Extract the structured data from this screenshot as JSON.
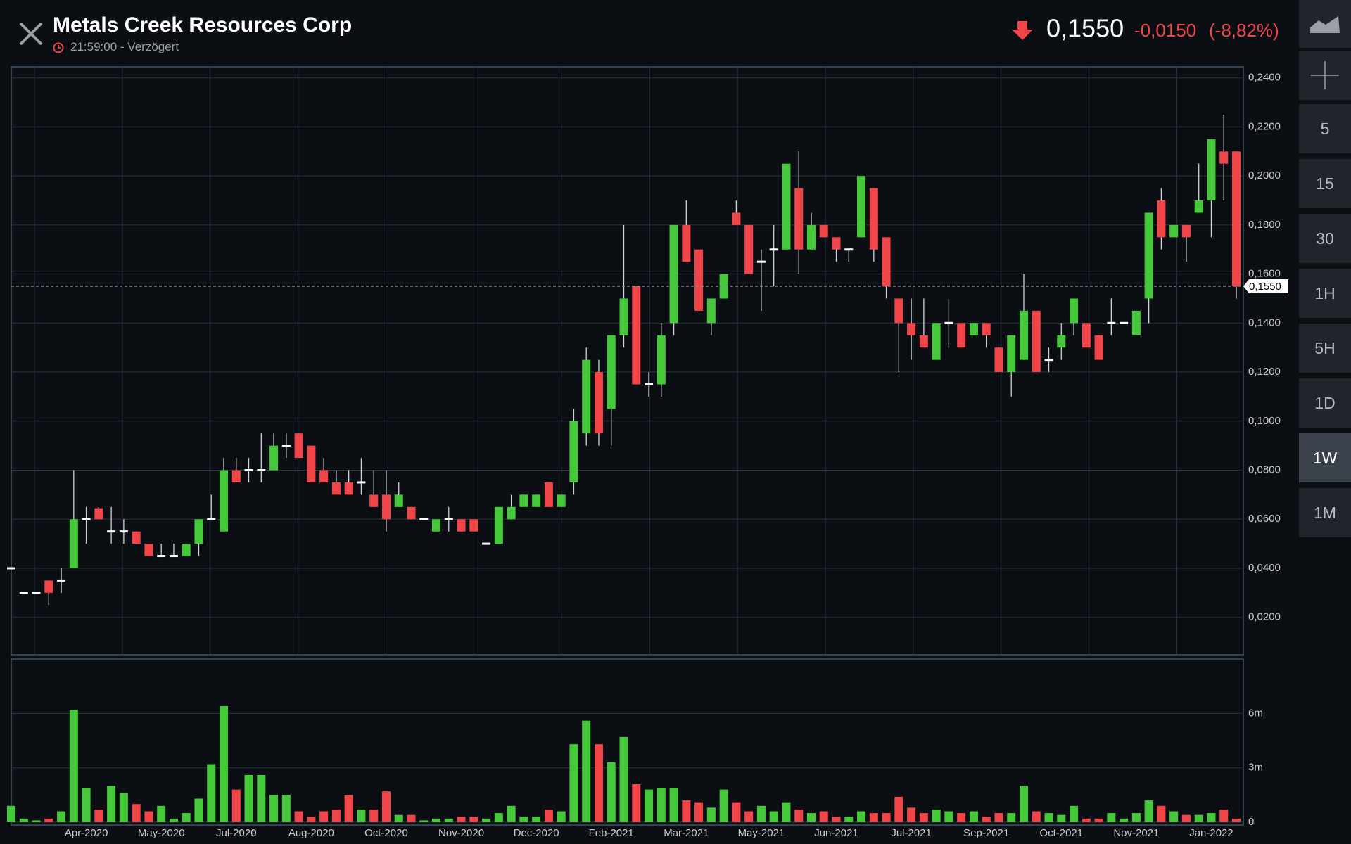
{
  "header": {
    "title": "Metals Creek Resources Corp",
    "time": "21:59:00",
    "delay_label": "- Verzögert",
    "price": "0,1550",
    "change": "-0,0150",
    "change_pct": "(-8,82%)"
  },
  "toolbar": {
    "timeframes": [
      "5",
      "15",
      "30",
      "1H",
      "5H",
      "1D",
      "1W",
      "1M"
    ],
    "active_timeframe": "1W"
  },
  "chart_data": {
    "type": "candlestick",
    "up_color": "#45c93b",
    "down_color": "#f0464a",
    "grid": true,
    "xlim": [
      0,
      98
    ],
    "xticks": [
      {
        "value": 6,
        "label": "Apr-2020"
      },
      {
        "value": 12,
        "label": "May-2020"
      },
      {
        "value": 18,
        "label": "Jul-2020"
      },
      {
        "value": 24,
        "label": "Aug-2020"
      },
      {
        "value": 30,
        "label": "Oct-2020"
      },
      {
        "value": 36,
        "label": "Nov-2020"
      },
      {
        "value": 42,
        "label": "Dec-2020"
      },
      {
        "value": 48,
        "label": "Feb-2021"
      },
      {
        "value": 54,
        "label": "Mar-2021"
      },
      {
        "value": 60,
        "label": "May-2021"
      },
      {
        "value": 66,
        "label": "Jun-2021"
      },
      {
        "value": 72,
        "label": "Jul-2021"
      },
      {
        "value": 78,
        "label": "Sep-2021"
      },
      {
        "value": 84,
        "label": "Oct-2021"
      },
      {
        "value": 90,
        "label": "Nov-2021"
      },
      {
        "value": 96,
        "label": "Jan-2022"
      }
    ],
    "ylim": [
      0.005,
      0.2445
    ],
    "yticks": [
      {
        "value": 0.02,
        "label": "0,0200"
      },
      {
        "value": 0.04,
        "label": "0,0400"
      },
      {
        "value": 0.06,
        "label": "0,0600"
      },
      {
        "value": 0.08,
        "label": "0,0800"
      },
      {
        "value": 0.1,
        "label": "0,1000"
      },
      {
        "value": 0.12,
        "label": "0,1200"
      },
      {
        "value": 0.14,
        "label": "0,1400"
      },
      {
        "value": 0.16,
        "label": "0,1600"
      },
      {
        "value": 0.18,
        "label": "0,1800"
      },
      {
        "value": 0.2,
        "label": "0,2000"
      },
      {
        "value": 0.22,
        "label": "0,2200"
      },
      {
        "value": 0.24,
        "label": "0,2400"
      }
    ],
    "last_price": {
      "value": 0.155,
      "label": "0,1550"
    },
    "open": [
      0.04,
      0.03,
      0.03,
      0.035,
      0.035,
      0.04,
      0.06,
      0.0645,
      0.055,
      0.055,
      0.055,
      0.05,
      0.045,
      0.045,
      0.045,
      0.05,
      0.06,
      0.055,
      0.08,
      0.08,
      0.08,
      0.08,
      0.09,
      0.095,
      0.09,
      0.08,
      0.075,
      0.075,
      0.075,
      0.07,
      0.07,
      0.065,
      0.065,
      0.06,
      0.055,
      0.06,
      0.06,
      0.06,
      0.05,
      0.05,
      0.06,
      0.065,
      0.065,
      0.075,
      0.065,
      0.075,
      0.095,
      0.12,
      0.105,
      0.135,
      0.155,
      0.115,
      0.115,
      0.14,
      0.18,
      0.17,
      0.14,
      0.15,
      0.185,
      0.18,
      0.165,
      0.17,
      0.17,
      0.195,
      0.17,
      0.18,
      0.175,
      0.17,
      0.175,
      0.195,
      0.175,
      0.15,
      0.14,
      0.135,
      0.125,
      0.14,
      0.14,
      0.135,
      0.14,
      0.13,
      0.12,
      0.125,
      0.145,
      0.125,
      0.13,
      0.14,
      0.14,
      0.135,
      0.14,
      0.14,
      0.135,
      0.15,
      0.19,
      0.175,
      0.18,
      0.185,
      0.19,
      0.21,
      0.21
    ],
    "high": [
      0.04,
      0.03,
      0.03,
      0.035,
      0.04,
      0.08,
      0.065,
      0.065,
      0.065,
      0.06,
      0.055,
      0.05,
      0.05,
      0.05,
      0.05,
      0.06,
      0.07,
      0.085,
      0.085,
      0.085,
      0.095,
      0.095,
      0.095,
      0.095,
      0.09,
      0.085,
      0.08,
      0.08,
      0.085,
      0.08,
      0.08,
      0.075,
      0.065,
      0.06,
      0.06,
      0.065,
      0.06,
      0.06,
      0.05,
      0.065,
      0.07,
      0.07,
      0.07,
      0.075,
      0.07,
      0.105,
      0.13,
      0.125,
      0.135,
      0.18,
      0.155,
      0.12,
      0.14,
      0.18,
      0.19,
      0.17,
      0.15,
      0.16,
      0.19,
      0.18,
      0.17,
      0.18,
      0.205,
      0.21,
      0.185,
      0.18,
      0.175,
      0.17,
      0.2,
      0.195,
      0.175,
      0.15,
      0.15,
      0.15,
      0.14,
      0.15,
      0.14,
      0.14,
      0.14,
      0.13,
      0.135,
      0.16,
      0.145,
      0.13,
      0.14,
      0.15,
      0.14,
      0.135,
      0.15,
      0.14,
      0.145,
      0.185,
      0.195,
      0.18,
      0.18,
      0.205,
      0.215,
      0.225,
      0.21
    ],
    "low": [
      0.04,
      0.03,
      0.03,
      0.025,
      0.03,
      0.04,
      0.05,
      0.06,
      0.05,
      0.05,
      0.05,
      0.045,
      0.045,
      0.045,
      0.045,
      0.045,
      0.06,
      0.055,
      0.075,
      0.075,
      0.075,
      0.08,
      0.085,
      0.085,
      0.075,
      0.075,
      0.07,
      0.07,
      0.07,
      0.065,
      0.055,
      0.065,
      0.06,
      0.06,
      0.055,
      0.055,
      0.055,
      0.055,
      0.05,
      0.05,
      0.06,
      0.065,
      0.065,
      0.065,
      0.065,
      0.07,
      0.09,
      0.09,
      0.09,
      0.13,
      0.115,
      0.11,
      0.11,
      0.135,
      0.165,
      0.145,
      0.135,
      0.15,
      0.18,
      0.16,
      0.145,
      0.155,
      0.17,
      0.16,
      0.17,
      0.175,
      0.165,
      0.165,
      0.175,
      0.165,
      0.15,
      0.12,
      0.125,
      0.13,
      0.125,
      0.13,
      0.13,
      0.135,
      0.13,
      0.12,
      0.11,
      0.125,
      0.12,
      0.12,
      0.125,
      0.135,
      0.13,
      0.125,
      0.135,
      0.14,
      0.135,
      0.14,
      0.17,
      0.175,
      0.165,
      0.185,
      0.175,
      0.19,
      0.15
    ],
    "close": [
      0.04,
      0.03,
      0.03,
      0.03,
      0.035,
      0.06,
      0.06,
      0.06,
      0.055,
      0.055,
      0.05,
      0.045,
      0.045,
      0.045,
      0.05,
      0.06,
      0.06,
      0.08,
      0.075,
      0.08,
      0.08,
      0.09,
      0.09,
      0.085,
      0.075,
      0.075,
      0.07,
      0.07,
      0.075,
      0.065,
      0.06,
      0.07,
      0.06,
      0.06,
      0.06,
      0.06,
      0.055,
      0.055,
      0.05,
      0.065,
      0.065,
      0.07,
      0.07,
      0.065,
      0.07,
      0.1,
      0.125,
      0.095,
      0.135,
      0.15,
      0.115,
      0.115,
      0.135,
      0.18,
      0.165,
      0.145,
      0.15,
      0.16,
      0.18,
      0.16,
      0.165,
      0.17,
      0.205,
      0.17,
      0.18,
      0.175,
      0.17,
      0.17,
      0.2,
      0.17,
      0.155,
      0.14,
      0.135,
      0.13,
      0.14,
      0.14,
      0.13,
      0.14,
      0.135,
      0.12,
      0.135,
      0.145,
      0.12,
      0.125,
      0.135,
      0.15,
      0.13,
      0.125,
      0.14,
      0.14,
      0.145,
      0.185,
      0.175,
      0.18,
      0.175,
      0.19,
      0.215,
      0.205,
      0.155
    ],
    "volume_ylim": [
      0,
      9000000
    ],
    "volume_yticks": [
      0,
      {
        "value": 3000000,
        "label": "3m"
      },
      {
        "value": 6000000,
        "label": "6m"
      }
    ],
    "volume": [
      900000,
      200000,
      100000,
      200000,
      600000,
      6200000,
      1900000,
      700000,
      2000000,
      1600000,
      1000000,
      600000,
      900000,
      200000,
      500000,
      1300000,
      3200000,
      6400000,
      1800000,
      2600000,
      2600000,
      1500000,
      1500000,
      600000,
      300000,
      600000,
      700000,
      1500000,
      700000,
      700000,
      1700000,
      400000,
      400000,
      100000,
      200000,
      200000,
      300000,
      300000,
      200000,
      500000,
      900000,
      300000,
      300000,
      700000,
      600000,
      4300000,
      5600000,
      4300000,
      3300000,
      4700000,
      2100000,
      1800000,
      1900000,
      1900000,
      1200000,
      1100000,
      800000,
      1800000,
      1100000,
      600000,
      900000,
      600000,
      1100000,
      700000,
      500000,
      600000,
      300000,
      300000,
      600000,
      500000,
      500000,
      1400000,
      800000,
      500000,
      700000,
      600000,
      500000,
      600000,
      300000,
      500000,
      500000,
      2000000,
      600000,
      500000,
      400000,
      900000,
      200000,
      200000,
      500000,
      200000,
      500000,
      1200000,
      900000,
      600000,
      400000,
      400000,
      500000,
      700000,
      200000
    ]
  }
}
